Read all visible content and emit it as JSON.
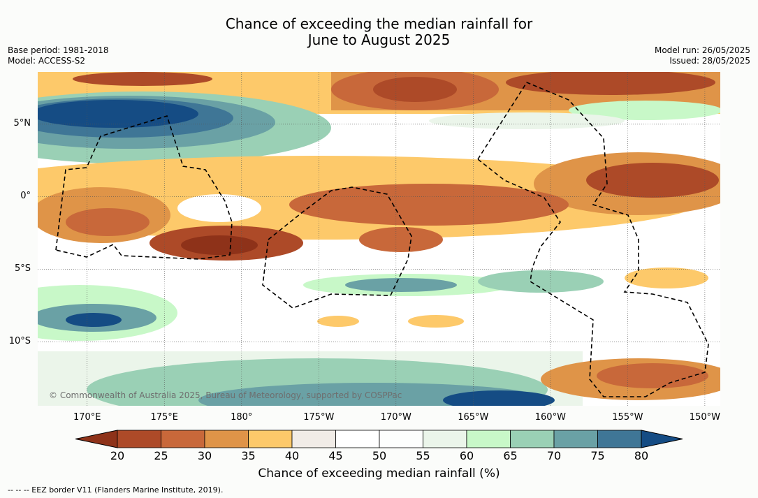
{
  "title": {
    "line1": "Chance of exceeding the median rainfall for",
    "line2": "June to August 2025"
  },
  "meta_left": {
    "base_period": "Base period: 1981-2018",
    "model": "Model: ACCESS-S2"
  },
  "meta_right": {
    "model_run": "Model run: 26/05/2025",
    "issued": "Issued: 28/05/2025"
  },
  "map": {
    "lon_range": [
      166.8,
      -149.0
    ],
    "lat_range": [
      -14.4,
      8.6
    ],
    "lat_labels": [
      {
        "text": "5°N",
        "lat": 5
      },
      {
        "text": "0°",
        "lat": 0
      },
      {
        "text": "5°S",
        "lat": -5
      },
      {
        "text": "10°S",
        "lat": -10
      }
    ],
    "lon_labels": [
      {
        "text": "170°E",
        "lon": 170
      },
      {
        "text": "175°E",
        "lon": 175
      },
      {
        "text": "180°",
        "lon": 180
      },
      {
        "text": "175°W",
        "lon": 185
      },
      {
        "text": "170°W",
        "lon": 190
      },
      {
        "text": "165°W",
        "lon": 195
      },
      {
        "text": "160°W",
        "lon": 200
      },
      {
        "text": "155°W",
        "lon": 205
      },
      {
        "text": "150°W",
        "lon": 210
      }
    ],
    "copyright": "© Commonwealth of Australia 2025, Bureau of Meteorology, supported by COSPPac"
  },
  "colorbar": {
    "label": "Chance of exceeding median rainfall (%)",
    "ticks": [
      "20",
      "25",
      "30",
      "35",
      "40",
      "45",
      "50",
      "55",
      "60",
      "65",
      "70",
      "75",
      "80"
    ],
    "colors": [
      "#8e3219",
      "#ad4a28",
      "#c8683a",
      "#df9448",
      "#fdc96a",
      "#f1ece7",
      "#ffffff",
      "#fdfefd",
      "#ebf5ea",
      "#c8f8c8",
      "#9ad0b5",
      "#6aa1a5",
      "#3f7696",
      "#154c84"
    ]
  },
  "footer": "--  --  -- EEZ border V11 (Flanders Marine Institute, 2019)."
}
